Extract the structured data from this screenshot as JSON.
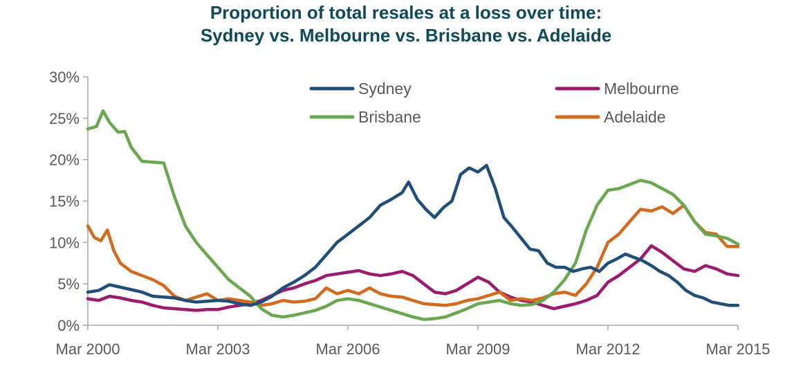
{
  "chart_data": {
    "type": "line",
    "title_line1": "Proportion of total resales at a loss over time:",
    "title_line2": "Sydney vs. Melbourne vs. Brisbane vs. Adelaide",
    "xlabel": "",
    "ylabel": "",
    "x_range": [
      2000.0,
      2015.0
    ],
    "ylim": [
      0,
      30
    ],
    "y_ticks": [
      "0%",
      "5%",
      "10%",
      "15%",
      "20%",
      "25%",
      "30%"
    ],
    "x_ticks": [
      {
        "x": 2000,
        "label": "Mar 2000"
      },
      {
        "x": 2003,
        "label": "Mar 2003"
      },
      {
        "x": 2006,
        "label": "Mar 2006"
      },
      {
        "x": 2009,
        "label": "Mar 2009"
      },
      {
        "x": 2012,
        "label": "Mar 2012"
      },
      {
        "x": 2015,
        "label": "Mar 2015"
      }
    ],
    "grid": false,
    "legend_position": "top-right",
    "series": [
      {
        "name": "Sydney",
        "color": "#1f4e79",
        "points": [
          [
            2000.0,
            4.0
          ],
          [
            2000.25,
            4.2
          ],
          [
            2000.5,
            4.9
          ],
          [
            2000.75,
            4.6
          ],
          [
            2001.0,
            4.3
          ],
          [
            2001.25,
            4.0
          ],
          [
            2001.5,
            3.5
          ],
          [
            2001.75,
            3.4
          ],
          [
            2002.0,
            3.3
          ],
          [
            2002.25,
            3.0
          ],
          [
            2002.5,
            2.8
          ],
          [
            2002.75,
            2.9
          ],
          [
            2003.0,
            3.0
          ],
          [
            2003.25,
            2.9
          ],
          [
            2003.5,
            2.6
          ],
          [
            2003.75,
            2.4
          ],
          [
            2004.0,
            2.8
          ],
          [
            2004.25,
            3.5
          ],
          [
            2004.5,
            4.5
          ],
          [
            2004.75,
            5.2
          ],
          [
            2005.0,
            6.0
          ],
          [
            2005.25,
            7.0
          ],
          [
            2005.5,
            8.5
          ],
          [
            2005.75,
            10.0
          ],
          [
            2006.0,
            11.0
          ],
          [
            2006.25,
            12.0
          ],
          [
            2006.5,
            13.0
          ],
          [
            2006.75,
            14.5
          ],
          [
            2007.0,
            15.2
          ],
          [
            2007.25,
            16.0
          ],
          [
            2007.4,
            17.3
          ],
          [
            2007.6,
            15.2
          ],
          [
            2007.8,
            14.0
          ],
          [
            2008.0,
            13.0
          ],
          [
            2008.2,
            14.2
          ],
          [
            2008.4,
            15.0
          ],
          [
            2008.6,
            18.2
          ],
          [
            2008.8,
            19.0
          ],
          [
            2009.0,
            18.5
          ],
          [
            2009.2,
            19.3
          ],
          [
            2009.4,
            16.5
          ],
          [
            2009.6,
            13.0
          ],
          [
            2009.8,
            11.8
          ],
          [
            2010.0,
            10.5
          ],
          [
            2010.2,
            9.2
          ],
          [
            2010.4,
            9.0
          ],
          [
            2010.6,
            7.5
          ],
          [
            2010.8,
            7.0
          ],
          [
            2011.0,
            7.0
          ],
          [
            2011.2,
            6.5
          ],
          [
            2011.4,
            6.8
          ],
          [
            2011.6,
            7.0
          ],
          [
            2011.8,
            6.5
          ],
          [
            2012.0,
            7.5
          ],
          [
            2012.2,
            8.0
          ],
          [
            2012.4,
            8.6
          ],
          [
            2012.6,
            8.2
          ],
          [
            2012.8,
            7.8
          ],
          [
            2013.0,
            7.2
          ],
          [
            2013.2,
            6.5
          ],
          [
            2013.4,
            6.0
          ],
          [
            2013.6,
            5.2
          ],
          [
            2013.8,
            4.2
          ],
          [
            2014.0,
            3.6
          ],
          [
            2014.2,
            3.3
          ],
          [
            2014.4,
            2.8
          ],
          [
            2014.6,
            2.6
          ],
          [
            2014.8,
            2.4
          ],
          [
            2015.0,
            2.4
          ]
        ]
      },
      {
        "name": "Melbourne",
        "color": "#9b1b6e",
        "points": [
          [
            2000.0,
            3.2
          ],
          [
            2000.25,
            3.0
          ],
          [
            2000.5,
            3.5
          ],
          [
            2000.75,
            3.3
          ],
          [
            2001.0,
            3.0
          ],
          [
            2001.25,
            2.8
          ],
          [
            2001.5,
            2.4
          ],
          [
            2001.75,
            2.1
          ],
          [
            2002.0,
            2.0
          ],
          [
            2002.25,
            1.9
          ],
          [
            2002.5,
            1.8
          ],
          [
            2002.75,
            1.9
          ],
          [
            2003.0,
            1.9
          ],
          [
            2003.25,
            2.2
          ],
          [
            2003.5,
            2.4
          ],
          [
            2003.75,
            2.6
          ],
          [
            2004.0,
            3.0
          ],
          [
            2004.25,
            3.6
          ],
          [
            2004.5,
            4.2
          ],
          [
            2004.75,
            4.5
          ],
          [
            2005.0,
            5.0
          ],
          [
            2005.25,
            5.4
          ],
          [
            2005.5,
            6.0
          ],
          [
            2005.75,
            6.2
          ],
          [
            2006.0,
            6.4
          ],
          [
            2006.25,
            6.6
          ],
          [
            2006.5,
            6.2
          ],
          [
            2006.75,
            6.0
          ],
          [
            2007.0,
            6.2
          ],
          [
            2007.25,
            6.5
          ],
          [
            2007.5,
            6.0
          ],
          [
            2007.75,
            5.0
          ],
          [
            2008.0,
            4.0
          ],
          [
            2008.25,
            3.8
          ],
          [
            2008.5,
            4.2
          ],
          [
            2008.75,
            5.0
          ],
          [
            2009.0,
            5.8
          ],
          [
            2009.25,
            5.2
          ],
          [
            2009.5,
            4.0
          ],
          [
            2009.75,
            3.4
          ],
          [
            2010.0,
            3.0
          ],
          [
            2010.25,
            2.8
          ],
          [
            2010.5,
            2.4
          ],
          [
            2010.75,
            2.0
          ],
          [
            2011.0,
            2.3
          ],
          [
            2011.25,
            2.6
          ],
          [
            2011.5,
            3.0
          ],
          [
            2011.75,
            3.6
          ],
          [
            2012.0,
            5.2
          ],
          [
            2012.25,
            6.0
          ],
          [
            2012.5,
            7.0
          ],
          [
            2012.75,
            8.0
          ],
          [
            2013.0,
            9.6
          ],
          [
            2013.25,
            8.8
          ],
          [
            2013.5,
            7.8
          ],
          [
            2013.75,
            6.8
          ],
          [
            2014.0,
            6.5
          ],
          [
            2014.25,
            7.2
          ],
          [
            2014.5,
            6.8
          ],
          [
            2014.75,
            6.2
          ],
          [
            2015.0,
            6.0
          ]
        ]
      },
      {
        "name": "Brisbane",
        "color": "#6aa84f",
        "points": [
          [
            2000.0,
            23.7
          ],
          [
            2000.2,
            24.0
          ],
          [
            2000.35,
            25.9
          ],
          [
            2000.5,
            24.5
          ],
          [
            2000.7,
            23.3
          ],
          [
            2000.85,
            23.4
          ],
          [
            2001.0,
            21.5
          ],
          [
            2001.25,
            19.8
          ],
          [
            2001.5,
            19.7
          ],
          [
            2001.75,
            19.6
          ],
          [
            2002.0,
            15.5
          ],
          [
            2002.25,
            12.0
          ],
          [
            2002.5,
            10.0
          ],
          [
            2002.75,
            8.5
          ],
          [
            2003.0,
            7.0
          ],
          [
            2003.25,
            5.5
          ],
          [
            2003.5,
            4.5
          ],
          [
            2003.75,
            3.5
          ],
          [
            2004.0,
            2.0
          ],
          [
            2004.25,
            1.2
          ],
          [
            2004.5,
            1.0
          ],
          [
            2004.75,
            1.2
          ],
          [
            2005.0,
            1.5
          ],
          [
            2005.25,
            1.8
          ],
          [
            2005.5,
            2.3
          ],
          [
            2005.75,
            3.0
          ],
          [
            2006.0,
            3.2
          ],
          [
            2006.25,
            3.0
          ],
          [
            2006.5,
            2.6
          ],
          [
            2006.75,
            2.2
          ],
          [
            2007.0,
            1.8
          ],
          [
            2007.25,
            1.4
          ],
          [
            2007.5,
            1.0
          ],
          [
            2007.75,
            0.7
          ],
          [
            2008.0,
            0.8
          ],
          [
            2008.25,
            1.0
          ],
          [
            2008.5,
            1.5
          ],
          [
            2008.75,
            2.0
          ],
          [
            2009.0,
            2.6
          ],
          [
            2009.25,
            2.8
          ],
          [
            2009.5,
            3.0
          ],
          [
            2009.75,
            2.6
          ],
          [
            2010.0,
            2.4
          ],
          [
            2010.25,
            2.5
          ],
          [
            2010.5,
            3.0
          ],
          [
            2010.75,
            4.0
          ],
          [
            2011.0,
            5.5
          ],
          [
            2011.25,
            7.5
          ],
          [
            2011.5,
            11.5
          ],
          [
            2011.75,
            14.5
          ],
          [
            2012.0,
            16.3
          ],
          [
            2012.25,
            16.5
          ],
          [
            2012.5,
            17.0
          ],
          [
            2012.75,
            17.5
          ],
          [
            2013.0,
            17.2
          ],
          [
            2013.25,
            16.5
          ],
          [
            2013.5,
            15.8
          ],
          [
            2013.75,
            14.5
          ],
          [
            2014.0,
            12.5
          ],
          [
            2014.25,
            11.0
          ],
          [
            2014.5,
            10.8
          ],
          [
            2014.75,
            10.5
          ],
          [
            2015.0,
            9.8
          ]
        ]
      },
      {
        "name": "Adelaide",
        "color": "#d36b1e",
        "points": [
          [
            2000.0,
            12.0
          ],
          [
            2000.15,
            10.6
          ],
          [
            2000.3,
            10.2
          ],
          [
            2000.45,
            11.5
          ],
          [
            2000.6,
            9.0
          ],
          [
            2000.75,
            7.5
          ],
          [
            2001.0,
            6.5
          ],
          [
            2001.25,
            6.0
          ],
          [
            2001.5,
            5.5
          ],
          [
            2001.75,
            4.8
          ],
          [
            2002.0,
            3.5
          ],
          [
            2002.25,
            3.0
          ],
          [
            2002.5,
            3.4
          ],
          [
            2002.75,
            3.8
          ],
          [
            2003.0,
            3.0
          ],
          [
            2003.25,
            3.2
          ],
          [
            2003.5,
            3.0
          ],
          [
            2003.75,
            2.8
          ],
          [
            2004.0,
            2.4
          ],
          [
            2004.25,
            2.6
          ],
          [
            2004.5,
            3.0
          ],
          [
            2004.75,
            2.8
          ],
          [
            2005.0,
            2.9
          ],
          [
            2005.25,
            3.2
          ],
          [
            2005.5,
            4.5
          ],
          [
            2005.75,
            3.8
          ],
          [
            2006.0,
            4.2
          ],
          [
            2006.25,
            3.8
          ],
          [
            2006.5,
            4.5
          ],
          [
            2006.75,
            3.8
          ],
          [
            2007.0,
            3.5
          ],
          [
            2007.25,
            3.4
          ],
          [
            2007.5,
            3.0
          ],
          [
            2007.75,
            2.6
          ],
          [
            2008.0,
            2.5
          ],
          [
            2008.25,
            2.4
          ],
          [
            2008.5,
            2.6
          ],
          [
            2008.75,
            3.0
          ],
          [
            2009.0,
            3.2
          ],
          [
            2009.25,
            3.6
          ],
          [
            2009.5,
            4.0
          ],
          [
            2009.75,
            3.0
          ],
          [
            2010.0,
            3.2
          ],
          [
            2010.25,
            3.0
          ],
          [
            2010.5,
            3.3
          ],
          [
            2010.75,
            3.8
          ],
          [
            2011.0,
            4.0
          ],
          [
            2011.25,
            3.6
          ],
          [
            2011.5,
            5.0
          ],
          [
            2011.75,
            7.0
          ],
          [
            2012.0,
            10.0
          ],
          [
            2012.25,
            11.0
          ],
          [
            2012.5,
            12.5
          ],
          [
            2012.75,
            14.0
          ],
          [
            2013.0,
            13.8
          ],
          [
            2013.25,
            14.3
          ],
          [
            2013.5,
            13.5
          ],
          [
            2013.75,
            14.5
          ],
          [
            2014.0,
            12.5
          ],
          [
            2014.25,
            11.2
          ],
          [
            2014.5,
            11.0
          ],
          [
            2014.75,
            9.5
          ],
          [
            2015.0,
            9.5
          ]
        ]
      }
    ]
  }
}
